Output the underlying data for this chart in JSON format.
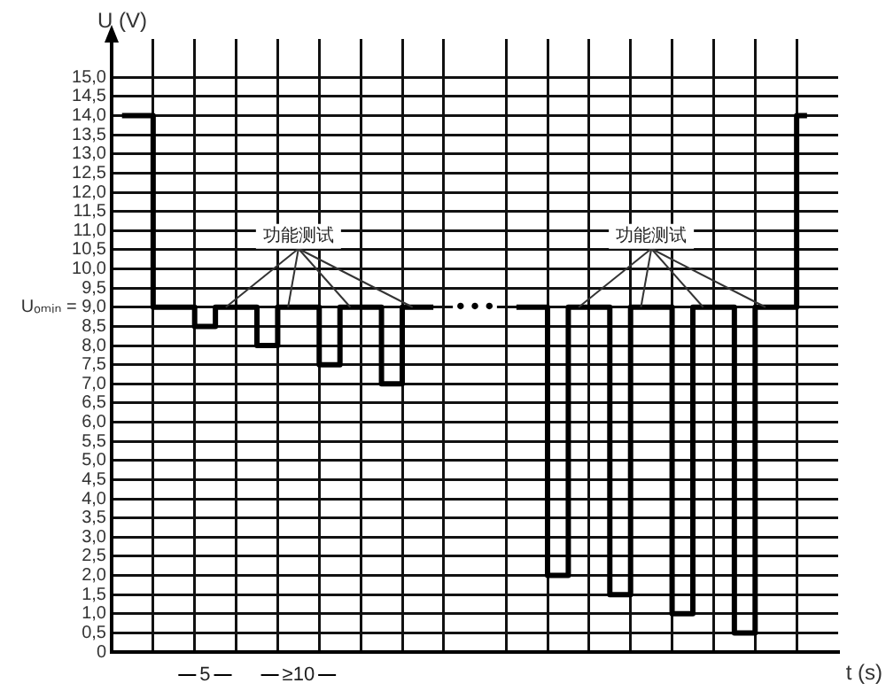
{
  "chart_data": {
    "type": "step",
    "xlabel": "t (s)",
    "ylabel": "U (V)",
    "categories": [
      null,
      null,
      null,
      null,
      null,
      null,
      null,
      null,
      null,
      null,
      null,
      null,
      null,
      null,
      null,
      null,
      null,
      null,
      null,
      null,
      null,
      null,
      null,
      null,
      null,
      null,
      null,
      null,
      null,
      null,
      null,
      null,
      null,
      null,
      null
    ],
    "series": [
      {
        "color": "#000000",
        "values": [
          14,
          14,
          9,
          9,
          8.5,
          9,
          9,
          8,
          9,
          9,
          7.5,
          9,
          9,
          7,
          9,
          9,
          null,
          null,
          null,
          9,
          9,
          2,
          9,
          9,
          1.5,
          9,
          9,
          1,
          9,
          9,
          0.5,
          9,
          9,
          14,
          null
        ]
      }
    ],
    "ylim": [
      0,
      16
    ],
    "yticks": [
      0,
      {
        "value": 0.5,
        "label": "0,5"
      },
      {
        "value": 1,
        "label": "1,0"
      },
      {
        "value": 1.5,
        "label": "1,5"
      },
      {
        "value": 2,
        "label": "2,0"
      },
      {
        "value": 2.5,
        "label": "2,5"
      },
      {
        "value": 3,
        "label": "3,0"
      },
      {
        "value": 3.5,
        "label": "3,5"
      },
      {
        "value": 4,
        "label": "4,0"
      },
      {
        "value": 4.5,
        "label": "4,5"
      },
      {
        "value": 5,
        "label": "5,0"
      },
      {
        "value": 5.5,
        "label": "5,5"
      },
      {
        "value": 6,
        "label": "6,0"
      },
      {
        "value": 6.5,
        "label": "6,5"
      },
      {
        "value": 7,
        "label": "7,0"
      },
      {
        "value": 7.5,
        "label": "7,5"
      },
      {
        "value": 8,
        "label": "8,0"
      },
      {
        "value": 8.5,
        "label": "8,5"
      },
      {
        "value": 9,
        "label": "Uₒₘᵢₙ = 9,0"
      },
      {
        "value": 9.5,
        "label": "9,5"
      },
      {
        "value": 10,
        "label": "10,0"
      },
      {
        "value": 10.5,
        "label": "10,5"
      },
      {
        "value": 11,
        "label": "11,0"
      },
      {
        "value": 11.5,
        "label": "11,5"
      },
      {
        "value": 12,
        "label": "12,0"
      },
      {
        "value": 12.5,
        "label": "12,5"
      },
      {
        "value": 13,
        "label": "13,0"
      },
      {
        "value": 13.5,
        "label": "13,5"
      },
      {
        "value": 14,
        "label": "14,0"
      },
      {
        "value": 14.5,
        "label": "14,5"
      },
      {
        "value": 15,
        "label": "15,0"
      }
    ],
    "tick_labels": "y",
    "grid": true,
    "legend": false,
    "marker": "none",
    "line_style": "solid",
    "annotations": [
      "功能测试",
      "功能测试",
      "• • •",
      "5",
      "≥10"
    ]
  }
}
